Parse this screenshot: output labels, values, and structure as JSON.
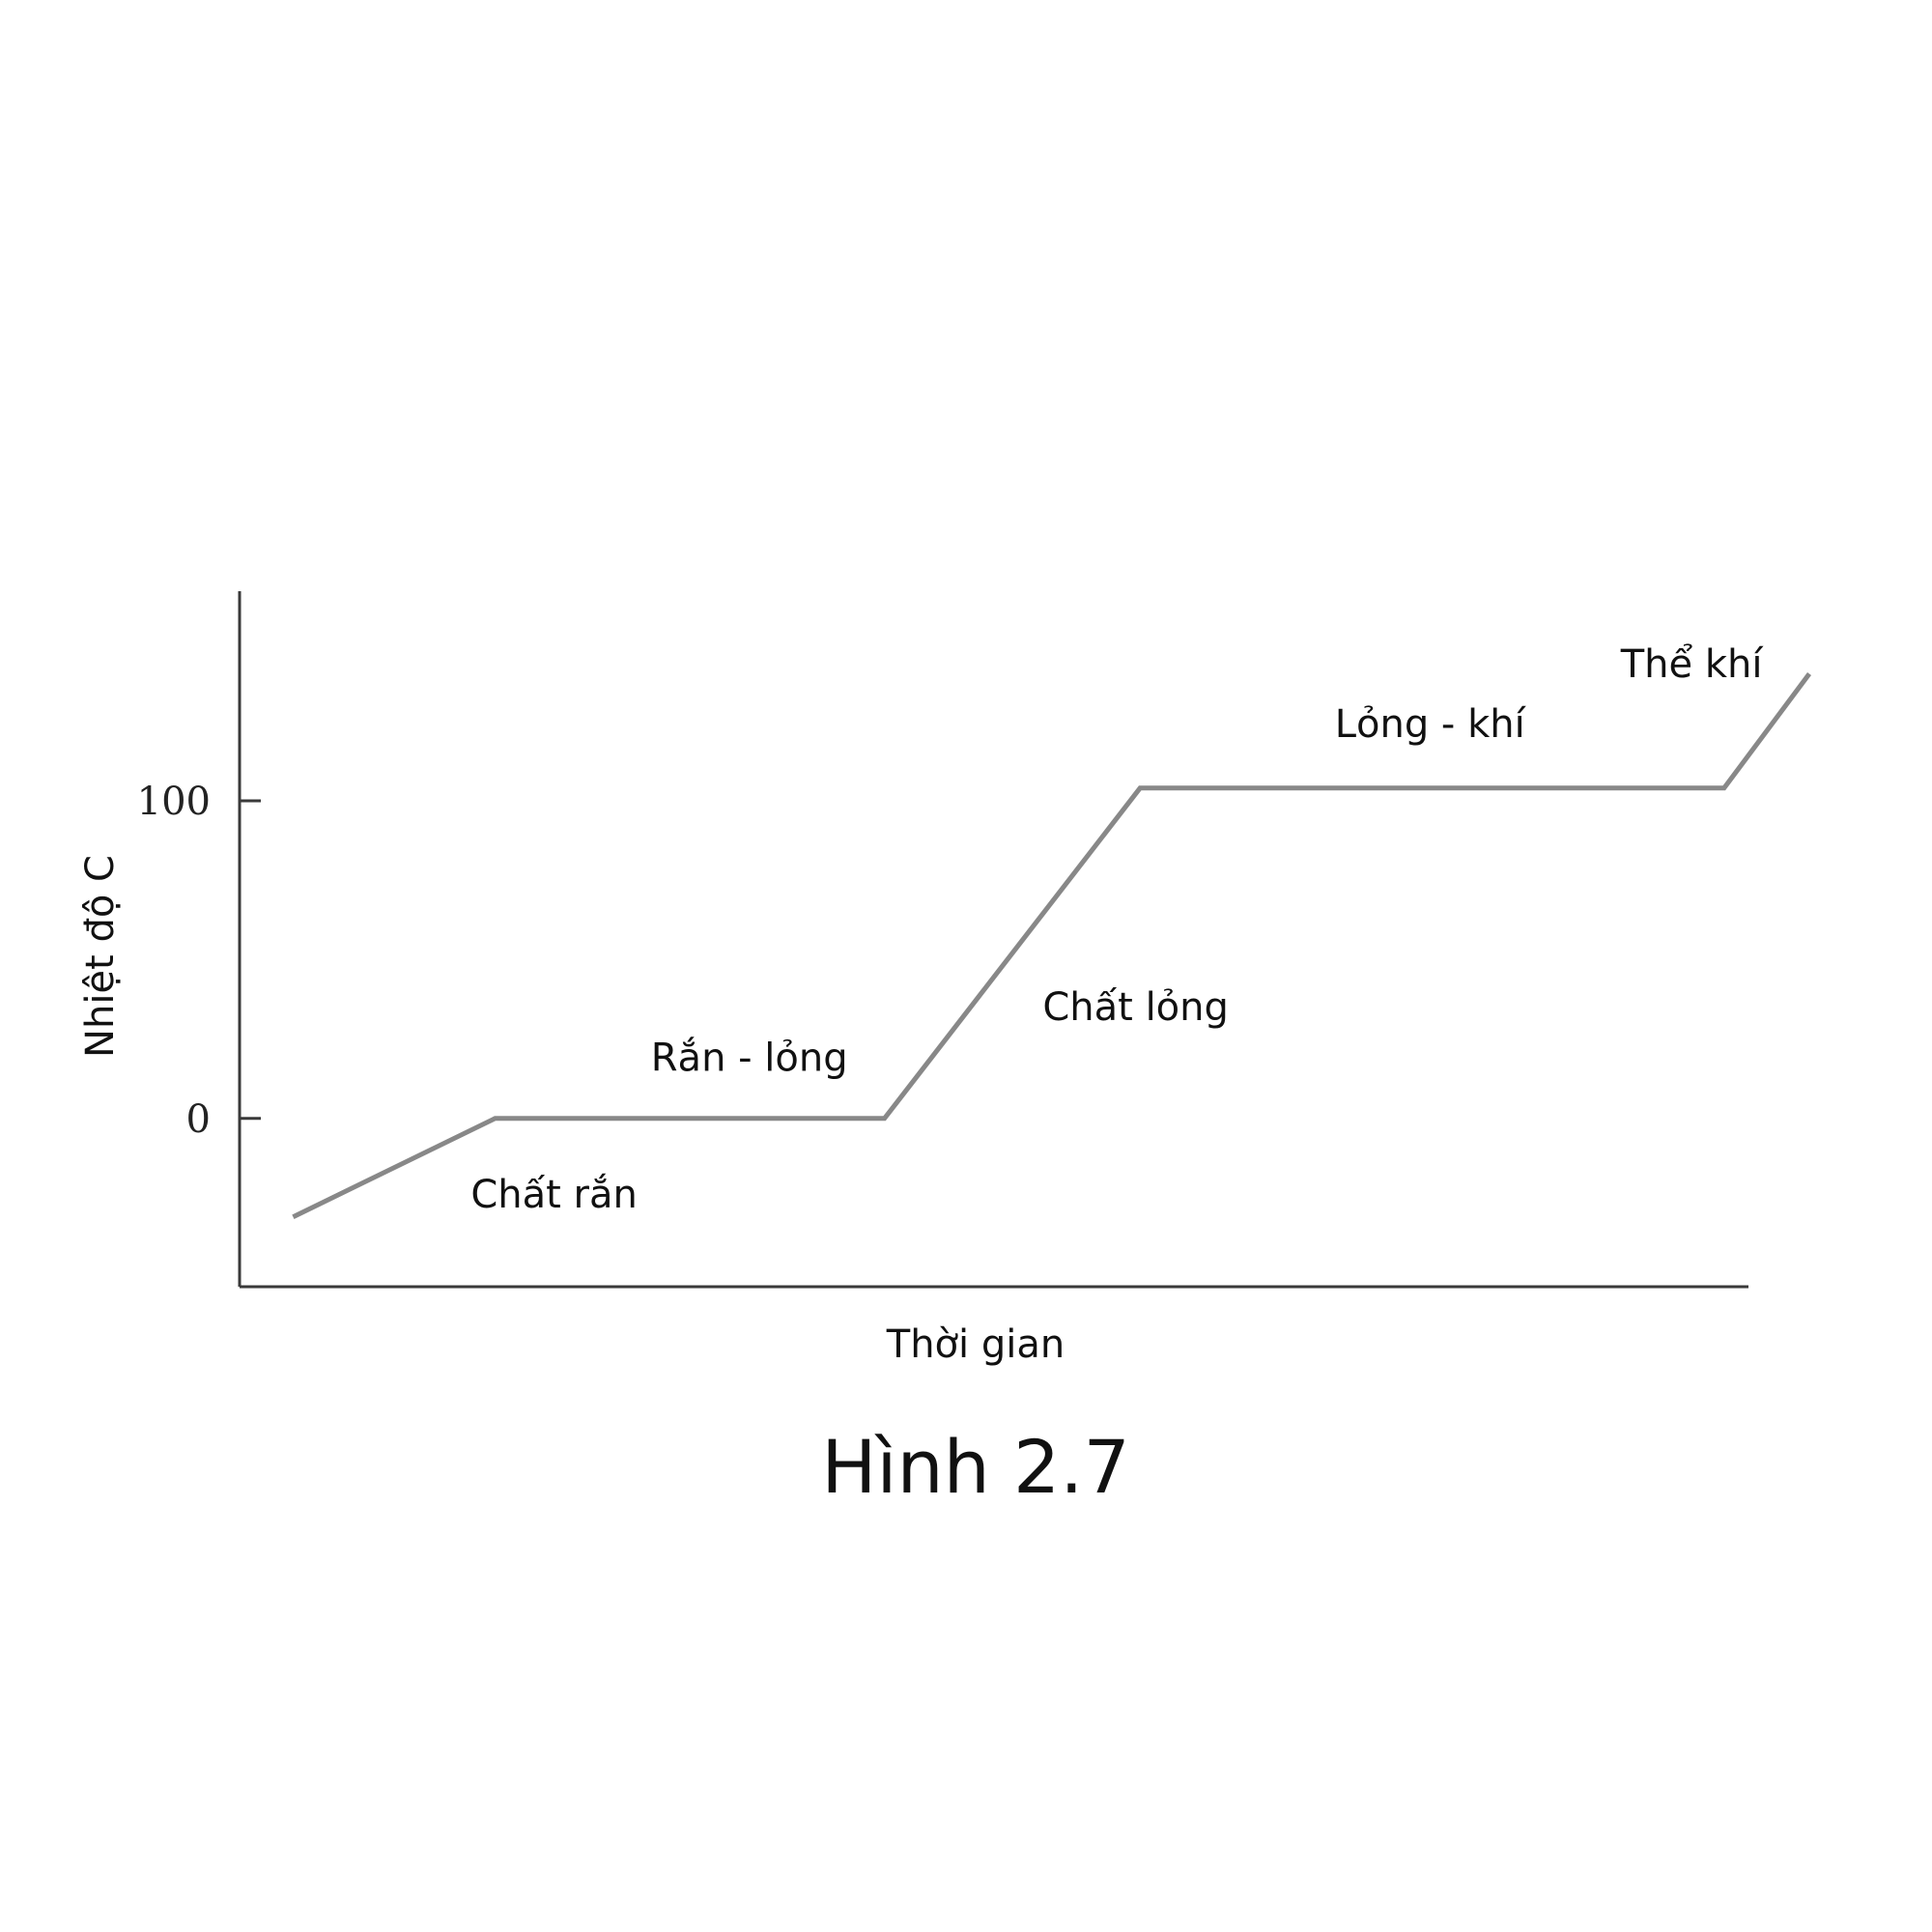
{
  "chart_data": {
    "type": "line",
    "xlabel": "Thời gian",
    "ylabel": "Nhiệt độ C",
    "ylim": [
      -53,
      166
    ],
    "y_ticks": [
      0,
      100
    ],
    "grid": false,
    "legend": "none",
    "series": [
      {
        "color": "#888888",
        "points": [
          {
            "x": 0.04,
            "y": -31
          },
          {
            "x": 1.7,
            "y": 0
          },
          {
            "x": 4.9,
            "y": 0
          },
          {
            "x": 7.0,
            "y": 104
          },
          {
            "x": 11.8,
            "y": 104
          },
          {
            "x": 12.5,
            "y": 140
          }
        ]
      }
    ],
    "xlim": [
      -0.4,
      12.0
    ],
    "annotations": [
      {
        "text": "Chất rắn",
        "x": 1.5,
        "y": -28
      },
      {
        "text": "Rắn - lỏng",
        "x": 2.98,
        "y": 15
      },
      {
        "text": "Chất lỏng",
        "x": 6.2,
        "y": 31
      },
      {
        "text": "Lỏng - khí",
        "x": 8.6,
        "y": 120
      },
      {
        "text": "Thể khí",
        "x": 10.95,
        "y": 139
      }
    ]
  },
  "caption": "Hình 2.7"
}
